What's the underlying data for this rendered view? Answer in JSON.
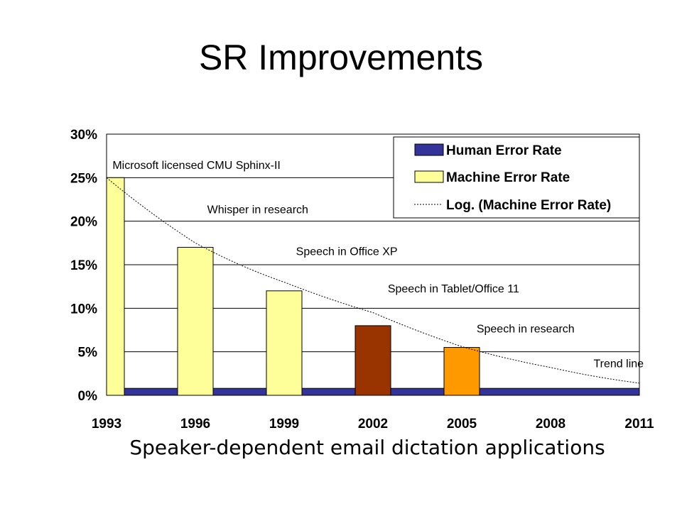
{
  "title": "SR Improvements",
  "subtitle": "Speaker-dependent email dictation applications",
  "chart_data": {
    "type": "bar",
    "x_ticks": [
      "1993",
      "1996",
      "1999",
      "2002",
      "2005",
      "2008",
      "2011"
    ],
    "y_ticks": [
      "0%",
      "5%",
      "10%",
      "15%",
      "20%",
      "25%",
      "30%"
    ],
    "ylim": [
      0,
      30
    ],
    "xlim": [
      1993,
      2011
    ],
    "grid": true,
    "legend_position": "top-right",
    "series": [
      {
        "name": "Human Error Rate",
        "kind": "band",
        "color": "#333399",
        "x_start": 1993,
        "x_end": 2011,
        "value": 0.8
      },
      {
        "name": "Machine Error Rate",
        "kind": "bar",
        "color": "#FFFF99",
        "points": [
          {
            "x": 1993,
            "y": 25,
            "color": "#FFFF99"
          },
          {
            "x": 1996,
            "y": 17,
            "color": "#FFFF99"
          },
          {
            "x": 1999,
            "y": 12,
            "color": "#FFFF99"
          },
          {
            "x": 2002,
            "y": 8,
            "color": "#993300"
          },
          {
            "x": 2005,
            "y": 5.5,
            "color": "#FF9900"
          }
        ]
      },
      {
        "name": "Log. (Machine Error Rate)",
        "kind": "trend",
        "style": "dotted",
        "points": [
          {
            "x": 1993,
            "y": 25
          },
          {
            "x": 1996,
            "y": 17.5
          },
          {
            "x": 1999,
            "y": 13
          },
          {
            "x": 2002,
            "y": 9.5
          },
          {
            "x": 2005,
            "y": 5.6
          },
          {
            "x": 2008,
            "y": 3.2
          },
          {
            "x": 2011,
            "y": 1.4
          }
        ]
      }
    ],
    "annotations": [
      {
        "text": "Microsoft licensed CMU Sphinx-II",
        "x": 1993.2,
        "y": 26.5
      },
      {
        "text": "Whisper in research",
        "x": 1996.4,
        "y": 21.4
      },
      {
        "text": "Speech in Office XP",
        "x": 1999.4,
        "y": 16.6
      },
      {
        "text": "Speech in Tablet/Office 11",
        "x": 2002.5,
        "y": 12.3
      },
      {
        "text": "Speech in research",
        "x": 2005.5,
        "y": 7.7
      },
      {
        "text": "Trend line",
        "x": 2009.5,
        "y": 3.7
      }
    ]
  }
}
